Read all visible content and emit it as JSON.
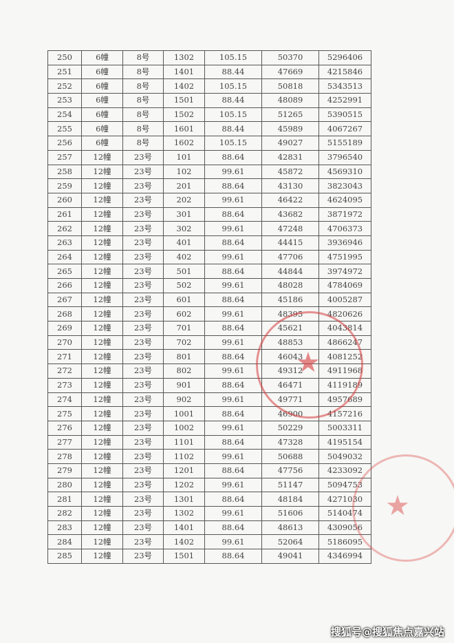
{
  "rows": [
    [
      "250",
      "6幢",
      "8号",
      "1302",
      "105.15",
      "50370",
      "5296406"
    ],
    [
      "251",
      "6幢",
      "8号",
      "1401",
      "88.44",
      "47669",
      "4215846"
    ],
    [
      "252",
      "6幢",
      "8号",
      "1402",
      "105.15",
      "50818",
      "5343513"
    ],
    [
      "253",
      "6幢",
      "8号",
      "1501",
      "88.44",
      "48089",
      "4252991"
    ],
    [
      "254",
      "6幢",
      "8号",
      "1502",
      "105.15",
      "51265",
      "5390515"
    ],
    [
      "255",
      "6幢",
      "8号",
      "1601",
      "88.44",
      "45989",
      "4067267"
    ],
    [
      "256",
      "6幢",
      "8号",
      "1602",
      "105.15",
      "49027",
      "5155189"
    ],
    [
      "257",
      "12幢",
      "23号",
      "101",
      "88.64",
      "42831",
      "3796540"
    ],
    [
      "258",
      "12幢",
      "23号",
      "102",
      "99.61",
      "45872",
      "4569310"
    ],
    [
      "259",
      "12幢",
      "23号",
      "201",
      "88.64",
      "43130",
      "3823043"
    ],
    [
      "260",
      "12幢",
      "23号",
      "202",
      "99.61",
      "46422",
      "4624095"
    ],
    [
      "261",
      "12幢",
      "23号",
      "301",
      "88.64",
      "43682",
      "3871972"
    ],
    [
      "262",
      "12幢",
      "23号",
      "302",
      "99.61",
      "47248",
      "4706373"
    ],
    [
      "263",
      "12幢",
      "23号",
      "401",
      "88.64",
      "44415",
      "3936946"
    ],
    [
      "264",
      "12幢",
      "23号",
      "402",
      "99.61",
      "47706",
      "4751995"
    ],
    [
      "265",
      "12幢",
      "23号",
      "501",
      "88.64",
      "44844",
      "3974972"
    ],
    [
      "266",
      "12幢",
      "23号",
      "502",
      "99.61",
      "48028",
      "4784069"
    ],
    [
      "267",
      "12幢",
      "23号",
      "601",
      "88.64",
      "45186",
      "4005287"
    ],
    [
      "268",
      "12幢",
      "23号",
      "602",
      "99.61",
      "48395",
      "4820626"
    ],
    [
      "269",
      "12幢",
      "23号",
      "701",
      "88.64",
      "45621",
      "4043814"
    ],
    [
      "270",
      "12幢",
      "23号",
      "702",
      "99.61",
      "48853",
      "4866247"
    ],
    [
      "271",
      "12幢",
      "23号",
      "801",
      "88.64",
      "46043",
      "4081252"
    ],
    [
      "272",
      "12幢",
      "23号",
      "802",
      "99.61",
      "49312",
      "4911968"
    ],
    [
      "273",
      "12幢",
      "23号",
      "901",
      "88.64",
      "46471",
      "4119189"
    ],
    [
      "274",
      "12幢",
      "23号",
      "902",
      "99.61",
      "49771",
      "4957689"
    ],
    [
      "275",
      "12幢",
      "23号",
      "1001",
      "88.64",
      "46900",
      "4157216"
    ],
    [
      "276",
      "12幢",
      "23号",
      "1002",
      "99.61",
      "50229",
      "5003311"
    ],
    [
      "277",
      "12幢",
      "23号",
      "1101",
      "88.64",
      "47328",
      "4195154"
    ],
    [
      "278",
      "12幢",
      "23号",
      "1102",
      "99.61",
      "50688",
      "5049032"
    ],
    [
      "279",
      "12幢",
      "23号",
      "1201",
      "88.64",
      "47756",
      "4233092"
    ],
    [
      "280",
      "12幢",
      "23号",
      "1202",
      "99.61",
      "51147",
      "5094753"
    ],
    [
      "281",
      "12幢",
      "23号",
      "1301",
      "88.64",
      "48184",
      "4271030"
    ],
    [
      "282",
      "12幢",
      "23号",
      "1302",
      "99.61",
      "51606",
      "5140474"
    ],
    [
      "283",
      "12幢",
      "23号",
      "1401",
      "88.64",
      "48613",
      "4309056"
    ],
    [
      "284",
      "12幢",
      "23号",
      "1402",
      "99.61",
      "52064",
      "5186095"
    ],
    [
      "285",
      "12幢",
      "23号",
      "1501",
      "88.64",
      "49041",
      "4346994"
    ]
  ],
  "stamp_color": "#d63c3c",
  "watermark": "搜狐号@搜狐焦点嘉兴站"
}
